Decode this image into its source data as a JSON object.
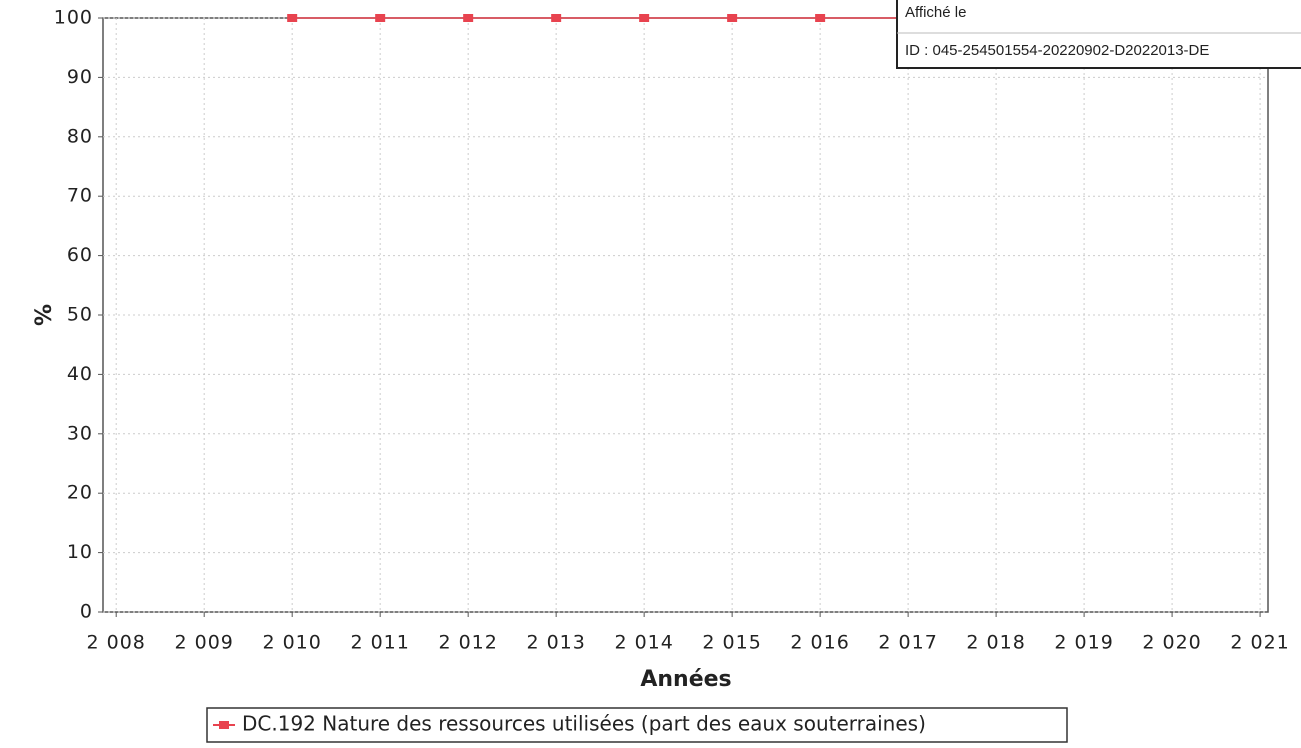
{
  "chart_data": {
    "type": "line",
    "x_label": "Années",
    "y_label": "%",
    "x": [
      2010,
      2011,
      2012,
      2013,
      2014,
      2015,
      2016,
      2017,
      2018,
      2019,
      2020,
      2021
    ],
    "series": [
      {
        "name": "DC.192 Nature des ressources utilisées (part des eaux souterraines)",
        "color": "#e8434f",
        "values": [
          100,
          100,
          100,
          100,
          100,
          100,
          100,
          100,
          100,
          100,
          100,
          100
        ]
      }
    ],
    "xlim": [
      2007.85,
      2021.09
    ],
    "xticks": [
      {
        "value": 2008,
        "label": "2 008"
      },
      {
        "value": 2009,
        "label": "2 009"
      },
      {
        "value": 2010,
        "label": "2 010"
      },
      {
        "value": 2011,
        "label": "2 011"
      },
      {
        "value": 2012,
        "label": "2 012"
      },
      {
        "value": 2013,
        "label": "2 013"
      },
      {
        "value": 2014,
        "label": "2 014"
      },
      {
        "value": 2015,
        "label": "2 015"
      },
      {
        "value": 2016,
        "label": "2 016"
      },
      {
        "value": 2017,
        "label": "2 017"
      },
      {
        "value": 2018,
        "label": "2 018"
      },
      {
        "value": 2019,
        "label": "2 019"
      },
      {
        "value": 2020,
        "label": "2 020"
      },
      {
        "value": 2021,
        "label": "2 021"
      }
    ],
    "ylim": [
      0,
      100
    ],
    "yticks": [
      0,
      10,
      20,
      30,
      40,
      50,
      60,
      70,
      80,
      90,
      100
    ],
    "grid": true,
    "legend": "bottom",
    "annotations": [
      "Affiché le",
      "ID : 045-254501554-20220902-D2022013-DE"
    ]
  }
}
